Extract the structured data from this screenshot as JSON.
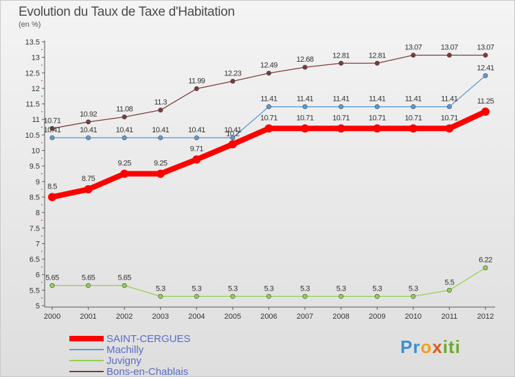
{
  "chart_data": {
    "type": "line",
    "title": "Evolution du Taux de Taxe d'Habitation",
    "unit_label": "(en %)",
    "x": [
      "2000",
      "2001",
      "2002",
      "2003",
      "2004",
      "2005",
      "2006",
      "2007",
      "2008",
      "2009",
      "2010",
      "2011",
      "2012"
    ],
    "ylim": [
      5,
      13.5
    ],
    "y_ticks": [
      "5",
      "5.5",
      "6",
      "6.5",
      "7",
      "7.5",
      "8",
      "8.5",
      "9",
      "9.5",
      "10",
      "10.5",
      "11",
      "11.5",
      "12",
      "12.5",
      "13",
      "13.5"
    ],
    "grid": false,
    "legend_position": "bottom-left",
    "series": [
      {
        "name": "SAINT-CERGUES",
        "color": "#ff0000",
        "values": [
          8.5,
          8.75,
          9.25,
          9.25,
          9.71,
          10.2,
          10.71,
          10.71,
          10.71,
          10.71,
          10.71,
          10.71,
          11.25
        ]
      },
      {
        "name": "Machilly",
        "color": "#5b9bd5",
        "values": [
          10.41,
          10.41,
          10.41,
          10.41,
          10.41,
          10.41,
          11.41,
          11.41,
          11.41,
          11.41,
          11.41,
          11.41,
          12.41
        ]
      },
      {
        "name": "Juvigny",
        "color": "#92d050",
        "values": [
          5.65,
          5.65,
          5.65,
          5.3,
          5.3,
          5.3,
          5.3,
          5.3,
          5.3,
          5.3,
          5.3,
          5.5,
          6.22
        ]
      },
      {
        "name": "Bons-en-Chablais",
        "color": "#7a3b3b",
        "values": [
          10.71,
          10.92,
          11.08,
          11.3,
          11.99,
          12.23,
          12.49,
          12.68,
          12.81,
          12.81,
          13.07,
          13.07,
          13.07
        ]
      }
    ],
    "data_labels": {
      "SAINT-CERGUES": [
        "8.5",
        "8.75",
        "9.25",
        "9.25",
        "9.71",
        "10.2",
        "10.71",
        "10.71",
        "10.71",
        "10.71",
        "10.71",
        "10.71",
        "11.25"
      ],
      "Machilly": [
        "10.41",
        "10.41",
        "10.41",
        "10.41",
        "10.41",
        "10.41",
        "11.41",
        "11.41",
        "11.41",
        "11.41",
        "11.41",
        "11.41",
        "12.41"
      ],
      "Juvigny": [
        "5.65",
        "5.65",
        "5.65",
        "5.3",
        "5.3",
        "5.3",
        "5.3",
        "5.3",
        "5.3",
        "5.3",
        "5.3",
        "5.5",
        "6.22"
      ],
      "Bons-en-Chablais": [
        "10.71",
        "10.92",
        "11.08",
        "11.3",
        "11.99",
        "12.23",
        "12.49",
        "12.68",
        "12.81",
        "12.81",
        "13.07",
        "13.07",
        "13.07"
      ]
    }
  },
  "logo": {
    "p1": "Pr",
    "p2": "o",
    "p3": "x",
    "p4": "iti"
  }
}
